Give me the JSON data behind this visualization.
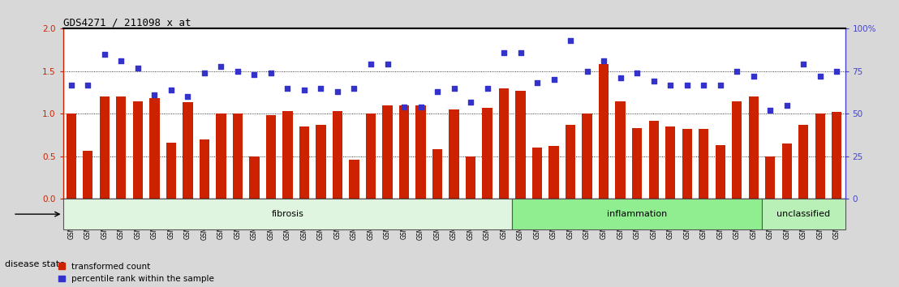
{
  "title": "GDS4271 / 211098_x_at",
  "samples": [
    "GSM380382",
    "GSM380383",
    "GSM380384",
    "GSM380385",
    "GSM380386",
    "GSM380387",
    "GSM380388",
    "GSM380389",
    "GSM380390",
    "GSM380391",
    "GSM380392",
    "GSM380393",
    "GSM380394",
    "GSM380395",
    "GSM380396",
    "GSM380397",
    "GSM380398",
    "GSM380399",
    "GSM380400",
    "GSM380401",
    "GSM380402",
    "GSM380403",
    "GSM380404",
    "GSM380405",
    "GSM380406",
    "GSM380407",
    "GSM380408",
    "GSM380409",
    "GSM380410",
    "GSM380411",
    "GSM380412",
    "GSM380413",
    "GSM380414",
    "GSM380415",
    "GSM380416",
    "GSM380417",
    "GSM380418",
    "GSM380419",
    "GSM380420",
    "GSM380421",
    "GSM380422",
    "GSM380423",
    "GSM380424",
    "GSM380425",
    "GSM380426",
    "GSM380427",
    "GSM380428"
  ],
  "bar_heights": [
    1.0,
    0.56,
    1.2,
    1.2,
    1.15,
    1.18,
    0.66,
    1.14,
    0.7,
    1.0,
    1.0,
    0.5,
    0.98,
    1.03,
    0.85,
    0.87,
    1.03,
    0.46,
    1.0,
    1.1,
    1.1,
    1.1,
    0.58,
    1.05,
    0.5,
    1.07,
    1.3,
    1.27,
    0.6,
    0.62,
    0.87,
    1.0,
    1.58,
    1.15,
    0.83,
    0.92,
    0.85,
    0.82,
    0.82,
    0.63,
    1.15,
    1.2,
    0.5,
    0.65,
    0.87,
    1.0,
    1.02
  ],
  "percentile_rank": [
    67,
    67,
    85,
    81,
    77,
    61,
    64,
    60,
    74,
    78,
    75,
    73,
    74,
    65,
    64,
    65,
    63,
    65,
    79,
    79,
    54,
    54,
    63,
    65,
    57,
    65,
    86,
    86,
    68,
    70,
    93,
    75,
    81,
    71,
    74,
    69,
    67,
    67,
    67,
    67,
    75,
    72,
    52,
    55,
    79,
    72,
    75
  ],
  "group_labels": [
    "fibrosis",
    "inflammation",
    "unclassified"
  ],
  "group_ranges": [
    [
      0,
      27
    ],
    [
      27,
      42
    ],
    [
      42,
      47
    ]
  ],
  "fibrosis_color": "#e0f5e0",
  "inflammation_color": "#90ee90",
  "unclassified_color": "#b8f0b8",
  "ylim_left": [
    0,
    2.0
  ],
  "yticks_left": [
    0,
    0.5,
    1.0,
    1.5,
    2.0
  ],
  "yticks_right": [
    0,
    25,
    50,
    75,
    100
  ],
  "yticklabels_right": [
    "0",
    "25",
    "50",
    "75",
    "100%"
  ],
  "bar_color": "#cc2200",
  "dot_color": "#3333cc",
  "bg_color": "#d8d8d8",
  "plot_bg": "#ffffff",
  "hline_vals": [
    0.5,
    1.0,
    1.5
  ],
  "title_fontsize": 9
}
